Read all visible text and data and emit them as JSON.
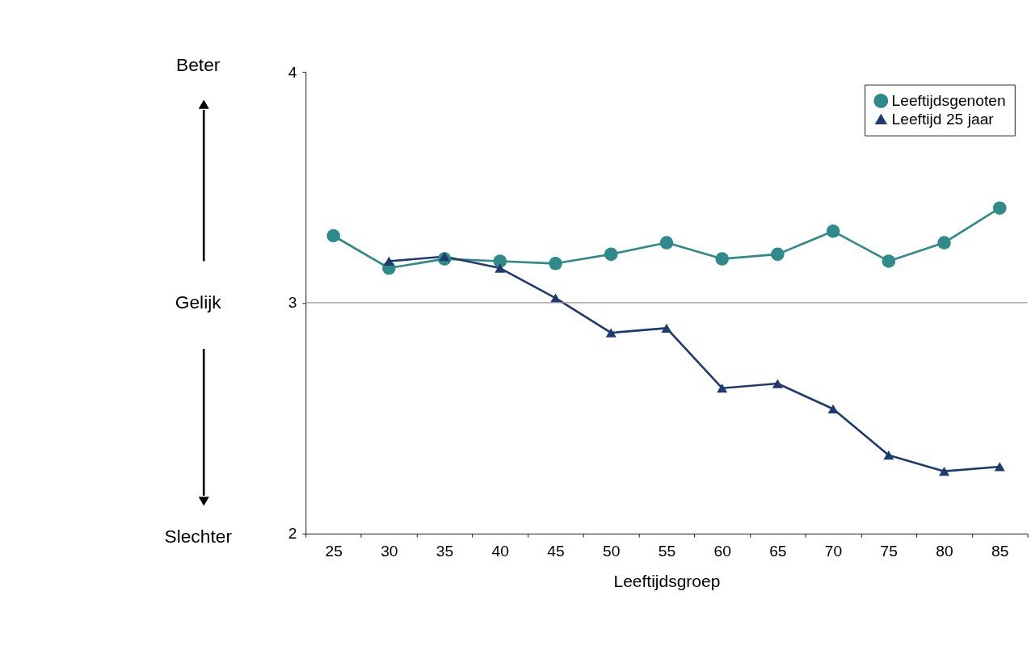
{
  "chart_data": {
    "type": "line",
    "xlabel": "Leeftijdsgroep",
    "categories": [
      "25",
      "30",
      "35",
      "40",
      "45",
      "50",
      "55",
      "60",
      "65",
      "70",
      "75",
      "80",
      "85"
    ],
    "series": [
      {
        "name": "Leeftijdsgenoten",
        "color": "#2f8a8a",
        "marker": "circle",
        "values": [
          3.29,
          3.15,
          3.19,
          3.18,
          3.17,
          3.21,
          3.26,
          3.19,
          3.21,
          3.31,
          3.18,
          3.26,
          3.41
        ]
      },
      {
        "name": "Leeftijd 25 jaar",
        "color": "#1f3a6e",
        "marker": "triangle",
        "values": [
          null,
          3.18,
          3.2,
          3.15,
          3.02,
          2.87,
          2.89,
          2.63,
          2.65,
          2.54,
          2.34,
          2.27,
          2.29
        ]
      }
    ],
    "ylim": [
      2,
      4
    ],
    "yticks": [
      2,
      3,
      4
    ],
    "grid": false,
    "legend": "top right",
    "ref_lines": [
      {
        "axis": "y",
        "value": 3,
        "color": "#999999"
      }
    ],
    "annotations": [
      "Beter",
      "Gelijk",
      "Slechter"
    ]
  }
}
